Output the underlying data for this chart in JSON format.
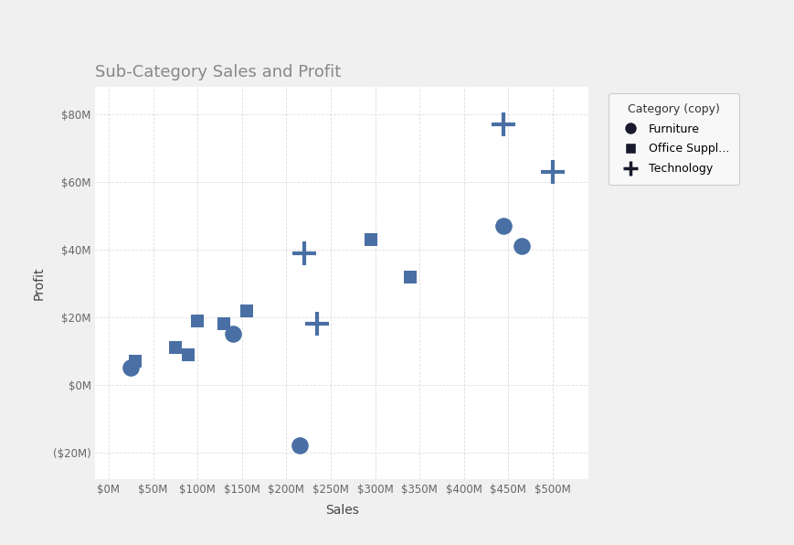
{
  "title": "Sub-Category Sales and Profit",
  "xlabel": "Sales",
  "ylabel": "Profit",
  "background_color": "#f0f0f0",
  "plot_background_color": "#ffffff",
  "point_color": "#4a6fa5",
  "legend_marker_color": "#1a1a2e",
  "furniture": {
    "label": "Furniture",
    "points": [
      [
        25,
        5
      ],
      [
        140,
        15
      ],
      [
        215,
        -18
      ],
      [
        445,
        47
      ],
      [
        465,
        41
      ]
    ]
  },
  "office_supplies": {
    "label": "Office Suppl...",
    "points": [
      [
        30,
        7
      ],
      [
        75,
        11
      ],
      [
        90,
        9
      ],
      [
        100,
        19
      ],
      [
        130,
        18
      ],
      [
        155,
        22
      ],
      [
        295,
        43
      ],
      [
        340,
        32
      ]
    ]
  },
  "technology": {
    "label": "Technology",
    "points": [
      [
        220,
        39
      ],
      [
        235,
        18
      ],
      [
        445,
        77
      ],
      [
        500,
        63
      ]
    ]
  },
  "xlim": [
    -15,
    540
  ],
  "ylim": [
    -28,
    88
  ],
  "xticks": [
    0,
    50,
    100,
    150,
    200,
    250,
    300,
    350,
    400,
    450,
    500
  ],
  "yticks": [
    -20,
    0,
    20,
    40,
    60,
    80
  ],
  "ytick_labels": [
    "($20M)",
    "$0M",
    "$20M",
    "$40M",
    "$60M",
    "$80M"
  ],
  "xtick_labels": [
    "$0M",
    "$50M",
    "$100M",
    "$150M",
    "$200M",
    "$250M",
    "$300M",
    "$350M",
    "$400M",
    "$450M",
    "$500M"
  ],
  "legend_title": "Category (copy)",
  "marker_size_furniture": 180,
  "marker_size_office": 110,
  "marker_size_tech": 180
}
